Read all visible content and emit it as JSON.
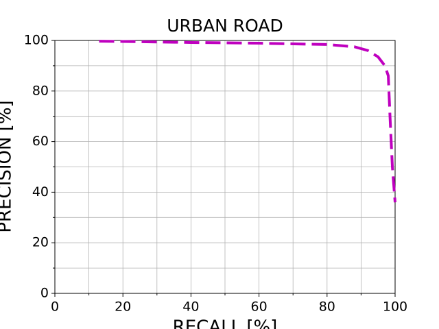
{
  "chart_data": {
    "type": "line",
    "title": "URBAN ROAD",
    "x_label": "RECALL [%]",
    "y_label": "PRECISION [%]",
    "xlim": [
      0,
      100
    ],
    "ylim": [
      0,
      100
    ],
    "xticks": [
      0,
      20,
      40,
      60,
      80,
      100
    ],
    "yticks": [
      0,
      20,
      40,
      60,
      80,
      100
    ],
    "x_minor_ticks": [
      10,
      30,
      50,
      70,
      90
    ],
    "y_minor_ticks": [
      10,
      30,
      50,
      70,
      90
    ],
    "grid": true,
    "dashed": true,
    "series": [
      {
        "color": "#bf00bf",
        "x": [
          13,
          20,
          40,
          60,
          80,
          88,
          92,
          95,
          97,
          98,
          98.5,
          99.2,
          100
        ],
        "values": [
          99.7,
          99.6,
          99.2,
          98.9,
          98.4,
          97.5,
          96,
          93.5,
          90,
          86,
          70,
          50,
          36
        ]
      }
    ]
  }
}
